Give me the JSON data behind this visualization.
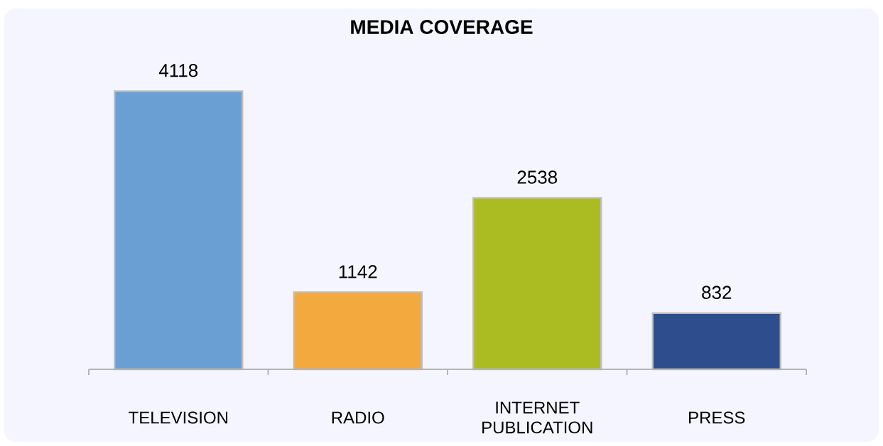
{
  "chart_data": {
    "type": "bar",
    "title": "MEDIA COVERAGE",
    "categories": [
      "TELEVISION",
      "RADIO",
      "INTERNET PUBLICATION",
      "PRESS"
    ],
    "values": [
      4118,
      1142,
      2538,
      832
    ],
    "colors": [
      "#6a9fd4",
      "#f4a93e",
      "#abbb22",
      "#2e4d8c"
    ],
    "data_labels": true
  }
}
